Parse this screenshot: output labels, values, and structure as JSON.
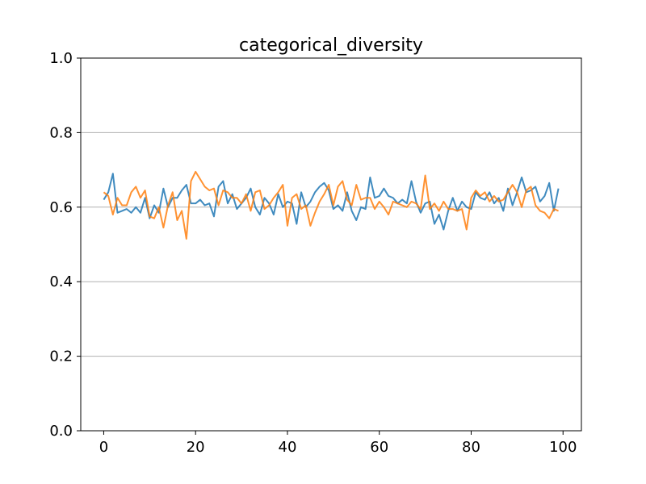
{
  "chart_data": {
    "type": "line",
    "title": "categorical_diversity",
    "xlabel": "",
    "ylabel": "",
    "xlim": [
      -5,
      104
    ],
    "ylim": [
      0.0,
      1.0
    ],
    "xticks": [
      0,
      20,
      40,
      60,
      80,
      100
    ],
    "yticks": [
      0.0,
      0.2,
      0.4,
      0.6,
      0.8,
      1.0
    ],
    "xtick_labels": [
      "0",
      "20",
      "40",
      "60",
      "80",
      "100"
    ],
    "ytick_labels": [
      "0.0",
      "0.2",
      "0.4",
      "0.6",
      "0.8",
      "1.0"
    ],
    "grid": "y",
    "legend": "none",
    "x": [
      0,
      1,
      2,
      3,
      4,
      5,
      6,
      7,
      8,
      9,
      10,
      11,
      12,
      13,
      14,
      15,
      16,
      17,
      18,
      19,
      20,
      21,
      22,
      23,
      24,
      25,
      26,
      27,
      28,
      29,
      30,
      31,
      32,
      33,
      34,
      35,
      36,
      37,
      38,
      39,
      40,
      41,
      42,
      43,
      44,
      45,
      46,
      47,
      48,
      49,
      50,
      51,
      52,
      53,
      54,
      55,
      56,
      57,
      58,
      59,
      60,
      61,
      62,
      63,
      64,
      65,
      66,
      67,
      68,
      69,
      70,
      71,
      72,
      73,
      74,
      75,
      76,
      77,
      78,
      79,
      80,
      81,
      82,
      83,
      84,
      85,
      86,
      87,
      88,
      89,
      90,
      91,
      92,
      93,
      94,
      95,
      96,
      97,
      98,
      99
    ],
    "series": [
      {
        "color": "#1f77b4",
        "values": [
          0.62,
          0.64,
          0.69,
          0.585,
          0.59,
          0.595,
          0.585,
          0.6,
          0.585,
          0.625,
          0.57,
          0.605,
          0.585,
          0.65,
          0.6,
          0.625,
          0.625,
          0.645,
          0.66,
          0.61,
          0.61,
          0.62,
          0.605,
          0.61,
          0.575,
          0.655,
          0.67,
          0.61,
          0.635,
          0.595,
          0.61,
          0.625,
          0.65,
          0.6,
          0.58,
          0.625,
          0.61,
          0.58,
          0.635,
          0.6,
          0.615,
          0.61,
          0.555,
          0.64,
          0.6,
          0.615,
          0.64,
          0.655,
          0.665,
          0.645,
          0.595,
          0.605,
          0.59,
          0.64,
          0.59,
          0.565,
          0.6,
          0.595,
          0.68,
          0.625,
          0.63,
          0.65,
          0.63,
          0.625,
          0.61,
          0.62,
          0.61,
          0.67,
          0.615,
          0.585,
          0.61,
          0.615,
          0.555,
          0.58,
          0.54,
          0.59,
          0.625,
          0.59,
          0.615,
          0.6,
          0.595,
          0.64,
          0.625,
          0.62,
          0.64,
          0.61,
          0.625,
          0.59,
          0.65,
          0.605,
          0.64,
          0.68,
          0.64,
          0.645,
          0.655,
          0.615,
          0.63,
          0.665,
          0.59,
          0.65
        ]
      },
      {
        "color": "#ff7f0e",
        "values": [
          0.64,
          0.63,
          0.58,
          0.625,
          0.605,
          0.605,
          0.64,
          0.655,
          0.625,
          0.645,
          0.575,
          0.57,
          0.6,
          0.545,
          0.605,
          0.64,
          0.565,
          0.59,
          0.515,
          0.67,
          0.695,
          0.675,
          0.655,
          0.645,
          0.65,
          0.605,
          0.645,
          0.64,
          0.625,
          0.625,
          0.61,
          0.635,
          0.59,
          0.64,
          0.645,
          0.595,
          0.605,
          0.625,
          0.64,
          0.66,
          0.55,
          0.625,
          0.635,
          0.595,
          0.605,
          0.55,
          0.585,
          0.615,
          0.635,
          0.66,
          0.605,
          0.655,
          0.67,
          0.62,
          0.605,
          0.66,
          0.62,
          0.625,
          0.625,
          0.595,
          0.615,
          0.6,
          0.58,
          0.615,
          0.61,
          0.605,
          0.6,
          0.615,
          0.61,
          0.595,
          0.685,
          0.595,
          0.61,
          0.59,
          0.615,
          0.595,
          0.595,
          0.59,
          0.595,
          0.54,
          0.625,
          0.645,
          0.63,
          0.64,
          0.615,
          0.63,
          0.615,
          0.62,
          0.64,
          0.66,
          0.64,
          0.6,
          0.645,
          0.655,
          0.605,
          0.59,
          0.585,
          0.57,
          0.595,
          0.59
        ]
      }
    ]
  }
}
